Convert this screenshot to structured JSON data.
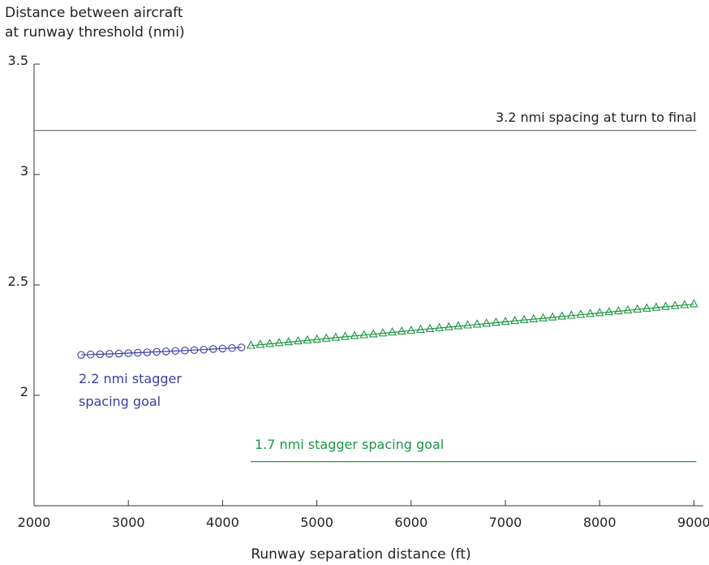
{
  "chart_data": {
    "type": "scatter",
    "ylabel_line1": "Distance between aircraft",
    "ylabel_line2": "at runway threshold (nmi)",
    "xlabel": "Runway separation distance (ft)",
    "xlim": [
      2000,
      9100
    ],
    "ylim": [
      1.5,
      3.5
    ],
    "x_ticks": [
      2000,
      3000,
      4000,
      5000,
      6000,
      7000,
      8000,
      9000
    ],
    "y_ticks": [
      2,
      2.5,
      3,
      3.5
    ],
    "y_tick_labels": [
      "2",
      "2.5",
      "3",
      "3.5"
    ],
    "reference_lines": [
      {
        "label": "3.2 nmi spacing at turn to final",
        "y": 3.2,
        "x_from": 2000,
        "x_to": 9000,
        "color": "#7a7a7a"
      },
      {
        "label": "1.7 nmi stagger spacing goal",
        "y": 1.7,
        "x_from": 4300,
        "x_to": 9000,
        "color": "#1a9641"
      }
    ],
    "series": [
      {
        "label_line1": "2.2 nmi stagger",
        "label_line2": "spacing goal",
        "marker": "circle",
        "color": "#3a3fa0",
        "x": [
          2500,
          2600,
          2700,
          2800,
          2900,
          3000,
          3100,
          3200,
          3300,
          3400,
          3500,
          3600,
          3700,
          3800,
          3900,
          4000,
          4100,
          4200
        ],
        "y": [
          2.183,
          2.185,
          2.186,
          2.188,
          2.189,
          2.191,
          2.193,
          2.195,
          2.197,
          2.199,
          2.201,
          2.203,
          2.205,
          2.207,
          2.21,
          2.212,
          2.214,
          2.217
        ]
      },
      {
        "label": "",
        "marker": "triangle",
        "color": "#1a9641",
        "x": [
          4300,
          4400,
          4500,
          4600,
          4700,
          4800,
          4900,
          5000,
          5100,
          5200,
          5300,
          5400,
          5500,
          5600,
          5700,
          5800,
          5900,
          6000,
          6100,
          6200,
          6300,
          6400,
          6500,
          6600,
          6700,
          6800,
          6900,
          7000,
          7100,
          7200,
          7300,
          7400,
          7500,
          7600,
          7700,
          7800,
          7900,
          8000,
          8100,
          8200,
          8300,
          8400,
          8500,
          8600,
          8700,
          8800,
          8900,
          9000
        ],
        "y": [
          2.225,
          2.229,
          2.233,
          2.237,
          2.241,
          2.245,
          2.249,
          2.253,
          2.257,
          2.261,
          2.265,
          2.269,
          2.273,
          2.277,
          2.281,
          2.285,
          2.289,
          2.293,
          2.297,
          2.301,
          2.305,
          2.309,
          2.313,
          2.317,
          2.321,
          2.325,
          2.329,
          2.333,
          2.337,
          2.341,
          2.345,
          2.349,
          2.353,
          2.357,
          2.361,
          2.365,
          2.369,
          2.373,
          2.377,
          2.381,
          2.385,
          2.389,
          2.393,
          2.397,
          2.401,
          2.405,
          2.409,
          2.413
        ]
      }
    ]
  }
}
